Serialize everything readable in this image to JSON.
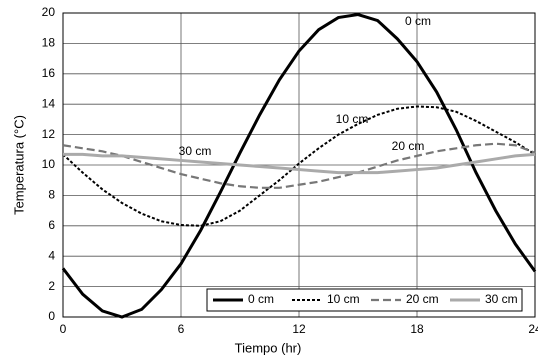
{
  "chart_data": {
    "type": "line",
    "x_label": "Tiempo (hr)",
    "y_label": "Temperatura (°C)",
    "x": [
      0,
      1,
      2,
      3,
      4,
      5,
      6,
      7,
      8,
      9,
      10,
      11,
      12,
      13,
      14,
      15,
      16,
      17,
      18,
      19,
      20,
      21,
      22,
      23,
      24
    ],
    "series": [
      {
        "name": "0 cm",
        "color": "#000000",
        "style": "solid",
        "values": [
          3.2,
          1.5,
          0.4,
          0,
          0.5,
          1.8,
          3.5,
          5.7,
          8.2,
          10.8,
          13.3,
          15.6,
          17.5,
          18.9,
          19.7,
          19.9,
          19.5,
          18.3,
          16.8,
          14.8,
          12.3,
          9.5,
          7,
          4.8,
          3.0
        ]
      },
      {
        "name": "10 cm",
        "color": "#000000",
        "style": "dotted",
        "values": [
          10.7,
          9.5,
          8.4,
          7.5,
          6.8,
          6.3,
          6.05,
          6.0,
          6.3,
          7.0,
          8.0,
          9.0,
          10.1,
          11.1,
          12.0,
          12.7,
          13.3,
          13.7,
          13.85,
          13.8,
          13.5,
          12.9,
          12.2,
          11.5,
          10.7
        ]
      },
      {
        "name": "20 cm",
        "color": "#777777",
        "style": "dashed",
        "values": [
          11.3,
          11.1,
          10.9,
          10.6,
          10.2,
          9.8,
          9.4,
          9.1,
          8.8,
          8.6,
          8.5,
          8.5,
          8.7,
          8.9,
          9.2,
          9.5,
          9.9,
          10.3,
          10.6,
          10.9,
          11.1,
          11.3,
          11.4,
          11.3,
          10.8
        ]
      },
      {
        "name": "30 cm",
        "color": "#aaaaaa",
        "style": "solid",
        "values": [
          10.7,
          10.7,
          10.6,
          10.6,
          10.5,
          10.4,
          10.3,
          10.2,
          10.1,
          10.0,
          9.9,
          9.8,
          9.7,
          9.6,
          9.5,
          9.5,
          9.5,
          9.6,
          9.7,
          9.8,
          10.0,
          10.2,
          10.4,
          10.6,
          10.7
        ]
      }
    ],
    "annotations": [
      "0 cm",
      "10 cm",
      "20 cm",
      "30 cm"
    ],
    "xlim": [
      0,
      24
    ],
    "xticks": [
      0,
      6,
      12,
      18,
      24
    ],
    "ylim": [
      0,
      20
    ],
    "yticks": [
      0,
      2,
      4,
      6,
      8,
      10,
      12,
      14,
      16,
      18,
      20
    ],
    "grid": true,
    "legend": "lower right"
  }
}
